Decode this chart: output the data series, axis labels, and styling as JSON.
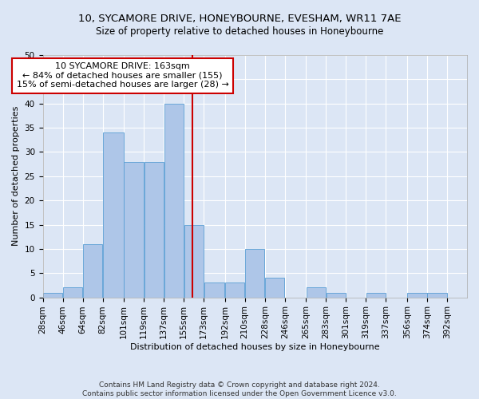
{
  "title": "10, SYCAMORE DRIVE, HONEYBOURNE, EVESHAM, WR11 7AE",
  "subtitle": "Size of property relative to detached houses in Honeybourne",
  "xlabel": "Distribution of detached houses by size in Honeybourne",
  "ylabel": "Number of detached properties",
  "footer_line1": "Contains HM Land Registry data © Crown copyright and database right 2024.",
  "footer_line2": "Contains public sector information licensed under the Open Government Licence v3.0.",
  "annotation_line1": "10 SYCAMORE DRIVE: 163sqm",
  "annotation_line2": "← 84% of detached houses are smaller (155)",
  "annotation_line3": "15% of semi-detached houses are larger (28) →",
  "bin_labels": [
    "28sqm",
    "46sqm",
    "64sqm",
    "82sqm",
    "101sqm",
    "119sqm",
    "137sqm",
    "155sqm",
    "173sqm",
    "192sqm",
    "210sqm",
    "228sqm",
    "246sqm",
    "265sqm",
    "283sqm",
    "301sqm",
    "319sqm",
    "337sqm",
    "356sqm",
    "374sqm",
    "392sqm"
  ],
  "bin_edges": [
    28,
    46,
    64,
    82,
    101,
    119,
    137,
    155,
    173,
    192,
    210,
    228,
    246,
    265,
    283,
    301,
    319,
    337,
    356,
    374,
    392
  ],
  "bar_heights": [
    1,
    2,
    11,
    34,
    28,
    28,
    40,
    15,
    3,
    3,
    10,
    4,
    0,
    2,
    1,
    0,
    1,
    0,
    1,
    1,
    0
  ],
  "bar_color": "#aec6e8",
  "bar_edge_color": "#5a9fd4",
  "vline_x": 163,
  "vline_color": "#cc0000",
  "annotation_box_color": "#cc0000",
  "ylim": [
    0,
    50
  ],
  "yticks": [
    0,
    5,
    10,
    15,
    20,
    25,
    30,
    35,
    40,
    45,
    50
  ],
  "background_color": "#dce6f5",
  "plot_background_color": "#dce6f5",
  "grid_color": "#ffffff",
  "title_fontsize": 9.5,
  "subtitle_fontsize": 8.5,
  "label_fontsize": 8,
  "tick_fontsize": 7.5,
  "annotation_fontsize": 8,
  "footer_fontsize": 6.5
}
